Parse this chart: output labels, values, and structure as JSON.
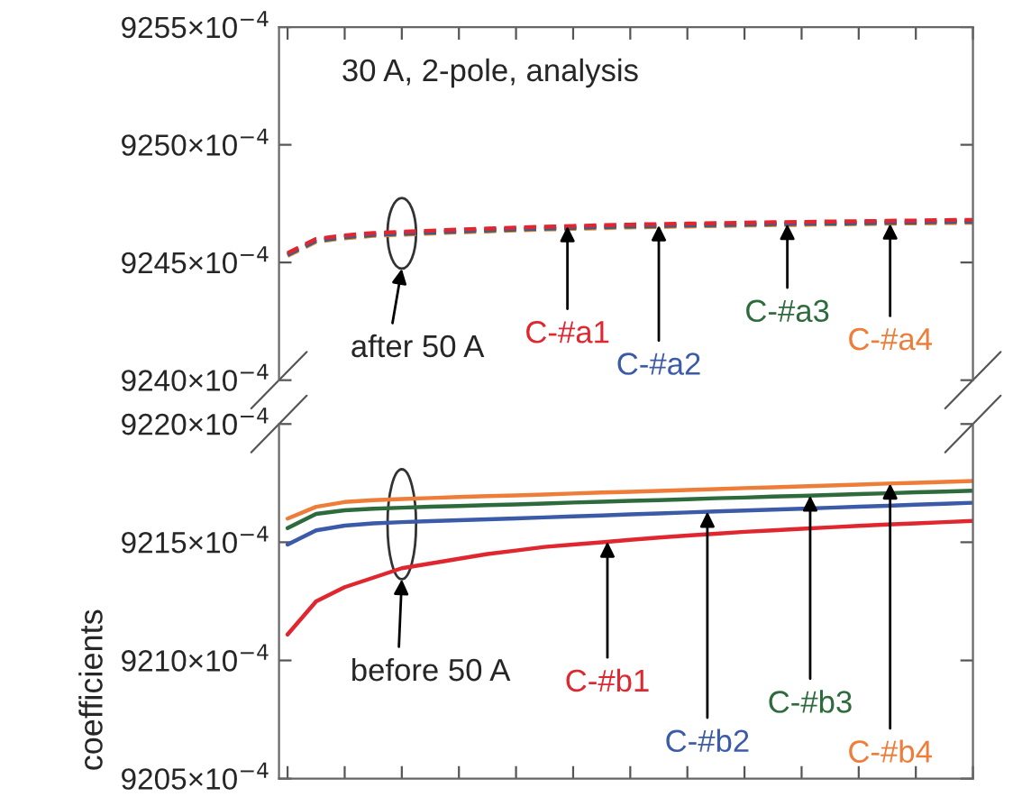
{
  "chart_data": [
    {
      "type": "line",
      "title": "30 A, 2-pole, analysis",
      "categories": [
        null,
        null,
        null,
        null,
        null,
        null,
        null,
        null,
        null,
        null,
        null,
        null,
        null,
        null,
        null,
        null,
        null,
        null,
        null,
        null,
        null,
        null,
        null,
        null,
        null
      ],
      "series": [
        {
          "name": "C-#a4",
          "color": "#ee7d3a",
          "values": [
            0.924528,
            0.924588,
            0.924603,
            0.924613,
            0.924618,
            0.924623,
            0.924628,
            0.924632,
            0.924636,
            0.92464,
            0.924643,
            0.924646,
            0.924649,
            0.924651,
            0.924653,
            0.924655,
            0.924657,
            0.924659,
            0.92466,
            0.924662,
            0.924663,
            0.924665,
            0.924666,
            0.924668,
            0.924669
          ]
        },
        {
          "name": "C-#a3",
          "color": "#2e6b3c",
          "values": [
            0.924532,
            0.924592,
            0.924607,
            0.924617,
            0.924622,
            0.924627,
            0.924632,
            0.924636,
            0.92464,
            0.924644,
            0.924647,
            0.92465,
            0.924653,
            0.924655,
            0.924657,
            0.924659,
            0.924661,
            0.924663,
            0.924664,
            0.924666,
            0.924667,
            0.924669,
            0.92467,
            0.924672,
            0.924673
          ]
        },
        {
          "name": "C-#a2",
          "color": "#3b5ba8",
          "values": [
            0.924535,
            0.924595,
            0.92461,
            0.92462,
            0.924625,
            0.92463,
            0.924635,
            0.924639,
            0.924643,
            0.924647,
            0.92465,
            0.924653,
            0.924656,
            0.924658,
            0.92466,
            0.924662,
            0.924664,
            0.924666,
            0.924667,
            0.924669,
            0.92467,
            0.924672,
            0.924673,
            0.924675,
            0.924676
          ]
        },
        {
          "name": "C-#a1",
          "color": "#e0262e",
          "values": [
            0.92454,
            0.9246,
            0.924615,
            0.924625,
            0.92463,
            0.924635,
            0.92464,
            0.924644,
            0.924648,
            0.924652,
            0.924655,
            0.924658,
            0.924661,
            0.924663,
            0.924665,
            0.924667,
            0.924669,
            0.924671,
            0.924672,
            0.924674,
            0.924675,
            0.924677,
            0.924678,
            0.92468,
            0.924681
          ]
        }
      ],
      "ylim": [
        0.924,
        0.9255
      ],
      "yticks": [
        {
          "value": 0.924,
          "label": "9240×10$^{−4}$"
        },
        {
          "value": 0.9245,
          "label": "9245×10$^{−4}$"
        },
        {
          "value": 0.925,
          "label": "9250×10$^{−4}$"
        },
        {
          "value": 0.9255,
          "label": "9255×10$^{−4}$"
        }
      ],
      "line_style": "dashed",
      "tick_labels": "y",
      "annotations": [
        "after 50 A"
      ]
    },
    {
      "type": "line",
      "ylabel": "coefficients",
      "categories": [
        null,
        null,
        null,
        null,
        null,
        null,
        null,
        null,
        null,
        null,
        null,
        null,
        null,
        null,
        null,
        null,
        null,
        null,
        null,
        null,
        null,
        null,
        null,
        null,
        null
      ],
      "series": [
        {
          "name": "C-#b1",
          "color": "#e0262e",
          "values": [
            0.92111,
            0.92125,
            0.92131,
            0.92135,
            0.92139,
            0.92141,
            0.92143,
            0.92145,
            0.921465,
            0.92148,
            0.92149,
            0.9215,
            0.92151,
            0.92152,
            0.921528,
            0.921536,
            0.921544,
            0.92155,
            0.921557,
            0.921563,
            0.921569,
            0.921575,
            0.92158,
            0.921585,
            0.92159
          ]
        },
        {
          "name": "C-#b2",
          "color": "#3b5ba8",
          "values": [
            0.92149,
            0.92155,
            0.92157,
            0.92158,
            0.921585,
            0.921589,
            0.921593,
            0.921597,
            0.921601,
            0.921605,
            0.921609,
            0.921613,
            0.921618,
            0.921622,
            0.921626,
            0.92163,
            0.921634,
            0.921638,
            0.921642,
            0.921646,
            0.92165,
            0.921654,
            0.921659,
            0.921663,
            0.921667
          ]
        },
        {
          "name": "C-#b3",
          "color": "#2e6b3c",
          "values": [
            0.92156,
            0.92162,
            0.921635,
            0.921642,
            0.921646,
            0.92165,
            0.921653,
            0.921657,
            0.92166,
            0.921664,
            0.921668,
            0.921671,
            0.921675,
            0.921678,
            0.921682,
            0.921686,
            0.921689,
            0.921693,
            0.921696,
            0.9217,
            0.921704,
            0.921707,
            0.921711,
            0.921714,
            0.921718
          ]
        },
        {
          "name": "C-#b4",
          "color": "#ee7d3a",
          "values": [
            0.9216,
            0.92165,
            0.92167,
            0.921678,
            0.921683,
            0.921687,
            0.921691,
            0.921695,
            0.921698,
            0.921702,
            0.921706,
            0.92171,
            0.921713,
            0.921717,
            0.921721,
            0.921725,
            0.921729,
            0.921732,
            0.921736,
            0.92174,
            0.921744,
            0.921748,
            0.921751,
            0.921755,
            0.921759
          ]
        }
      ],
      "ylim": [
        0.9205,
        0.922
      ],
      "yticks": [
        {
          "value": 0.9205,
          "label": "9205×10$^{−4}$"
        },
        {
          "value": 0.921,
          "label": "9210×10$^{−4}$"
        },
        {
          "value": 0.9215,
          "label": "9215×10$^{−4}$"
        },
        {
          "value": 0.922,
          "label": "9220×10$^{−4}$"
        }
      ],
      "line_style": "solid",
      "tick_labels": "y",
      "annotations": [
        "before 50 A"
      ]
    }
  ]
}
